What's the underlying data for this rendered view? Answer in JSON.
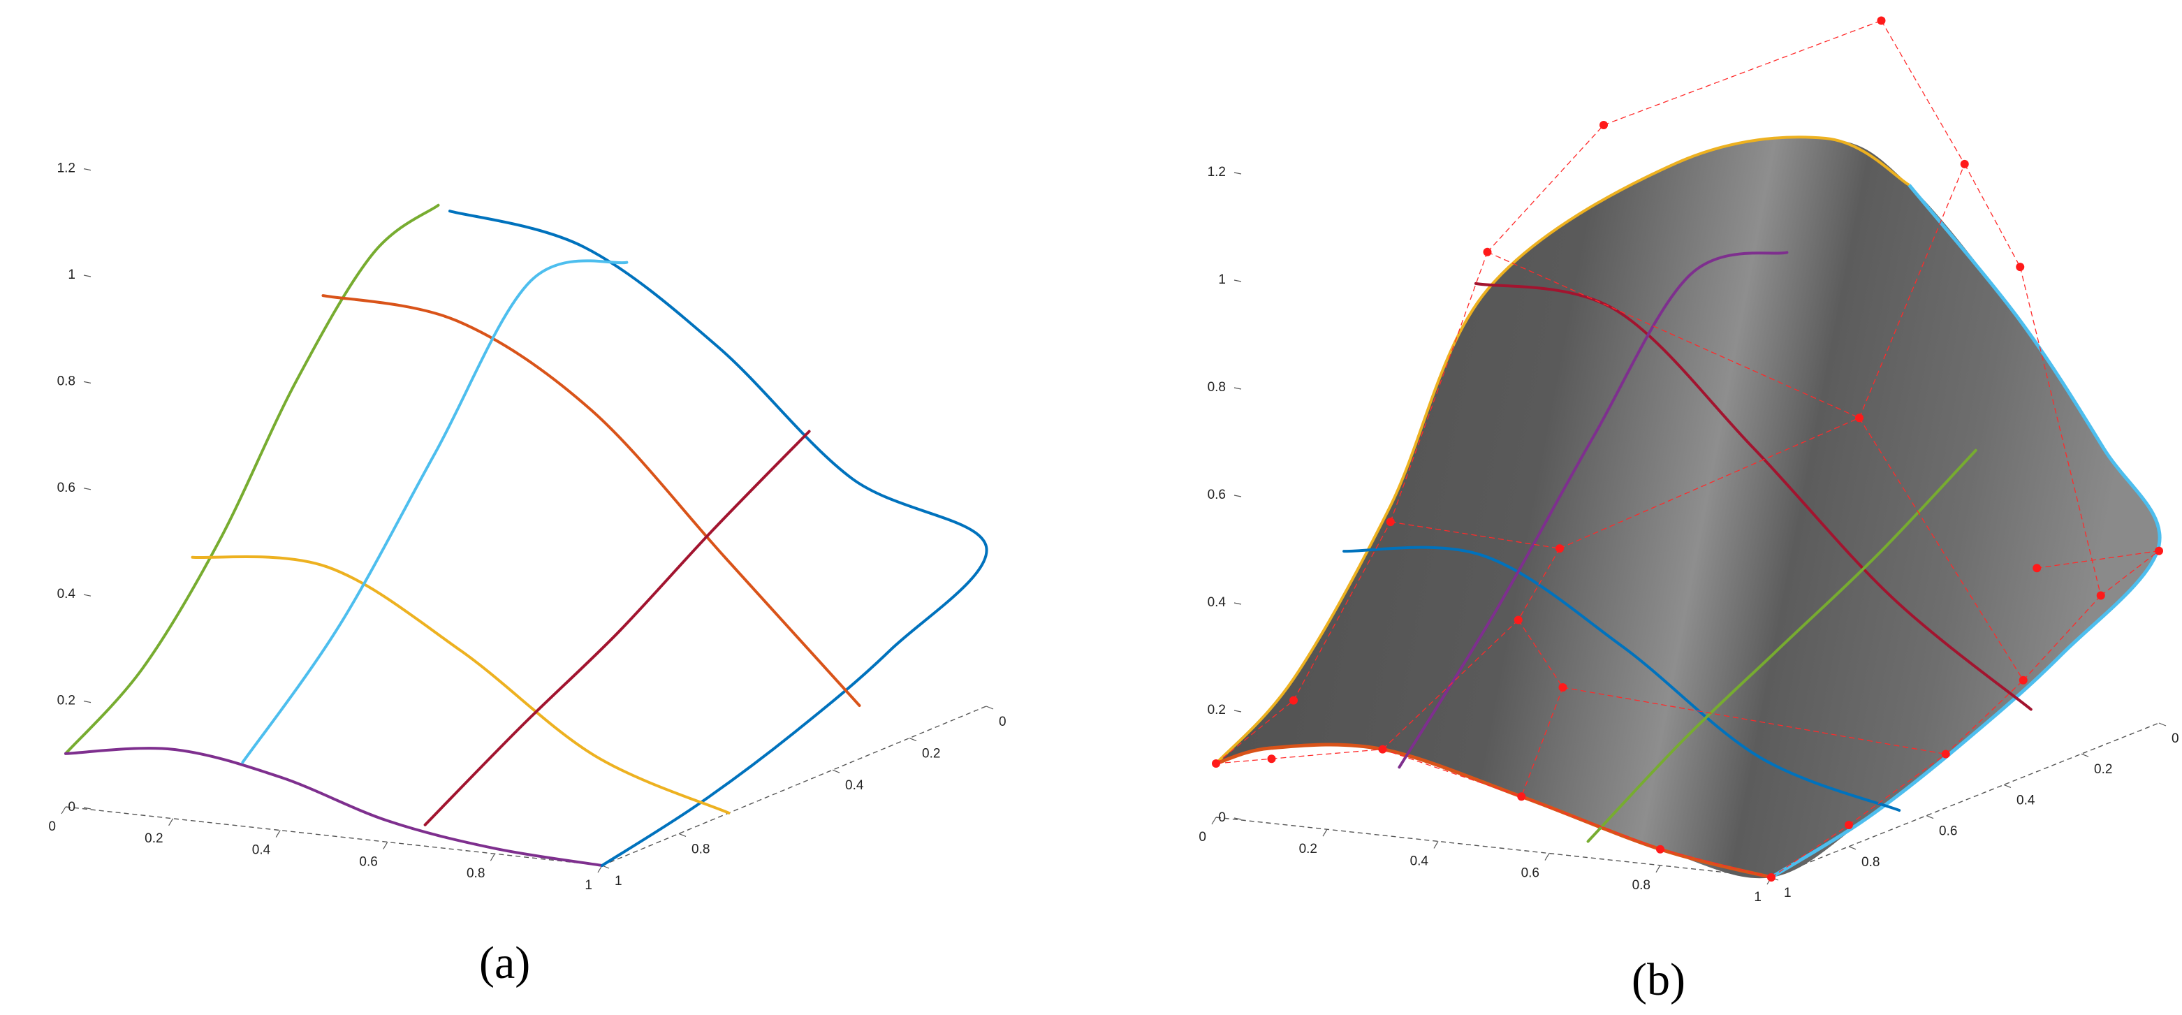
{
  "panel_labels": {
    "a": "(a)",
    "b": "(b)"
  },
  "chart_data": [
    {
      "type": "line",
      "panel": "(a)",
      "title": "",
      "projection": "3d",
      "axes": {
        "x": {
          "ticks": [
            "0",
            "0.2",
            "0.4",
            "0.6",
            "0.8",
            "1"
          ],
          "range": [
            0,
            1
          ]
        },
        "y": {
          "ticks": [
            "0",
            "0.2",
            "0.4",
            "0.8",
            "1"
          ],
          "range": [
            0,
            1
          ]
        },
        "z": {
          "ticks": [
            "0",
            "0.2",
            "0.4",
            "0.6",
            "0.8",
            "1",
            "1.2"
          ],
          "range": [
            0,
            1.2
          ]
        }
      },
      "grid": false,
      "series": [
        {
          "color": "#77AC30",
          "points": [
            [
              0,
              0,
              0.1
            ],
            [
              0,
              0.2,
              0.2
            ],
            [
              0,
              0.4,
              0.38
            ],
            [
              0,
              0.6,
              0.62
            ],
            [
              0,
              0.8,
              0.8
            ],
            [
              0,
              0.97,
              0.84
            ]
          ]
        },
        {
          "color": "#7E2F8E",
          "points": [
            [
              0,
              0,
              0.1
            ],
            [
              0.2,
              0,
              0.13
            ],
            [
              0.4,
              0,
              0.1
            ],
            [
              0.6,
              0,
              0.04
            ],
            [
              0.8,
              0,
              0.01
            ],
            [
              1,
              0,
              0
            ]
          ]
        },
        {
          "color": "#0072BD",
          "points": [
            [
              0,
              1,
              0.82
            ],
            [
              0.25,
              1,
              0.78
            ],
            [
              0.5,
              1,
              0.62
            ],
            [
              0.75,
              1,
              0.4
            ],
            [
              1,
              1,
              0.3
            ],
            [
              1,
              0.75,
              0.18
            ],
            [
              1,
              0.5,
              0.1
            ],
            [
              1,
              0.25,
              0.04
            ],
            [
              1,
              0,
              0
            ]
          ]
        },
        {
          "color": "#D95319",
          "points": [
            [
              0,
              0.67,
              0.76
            ],
            [
              0.25,
              0.67,
              0.74
            ],
            [
              0.5,
              0.67,
              0.6
            ],
            [
              0.75,
              0.67,
              0.35
            ],
            [
              1,
              0.67,
              0.1
            ]
          ]
        },
        {
          "color": "#EDB120",
          "points": [
            [
              0,
              0.33,
              0.37
            ],
            [
              0.25,
              0.33,
              0.38
            ],
            [
              0.5,
              0.33,
              0.25
            ],
            [
              0.75,
              0.33,
              0.08
            ],
            [
              1,
              0.33,
              0.0
            ]
          ]
        },
        {
          "color": "#4DBEEE",
          "points": [
            [
              0.33,
              0,
              0.12
            ],
            [
              0.33,
              0.25,
              0.3
            ],
            [
              0.33,
              0.5,
              0.55
            ],
            [
              0.33,
              0.75,
              0.8
            ],
            [
              0.33,
              1,
              0.76
            ]
          ]
        },
        {
          "color": "#A2142F",
          "points": [
            [
              0.67,
              0,
              0.04
            ],
            [
              0.67,
              0.25,
              0.15
            ],
            [
              0.67,
              0.5,
              0.25
            ],
            [
              0.67,
              0.75,
              0.37
            ],
            [
              0.67,
              1,
              0.48
            ]
          ]
        }
      ]
    },
    {
      "type": "surface",
      "panel": "(b)",
      "title": "",
      "projection": "3d",
      "axes": {
        "x": {
          "ticks": [
            "0",
            "0.2",
            "0.4",
            "0.6",
            "0.8",
            "1"
          ],
          "range": [
            0,
            1
          ]
        },
        "y": {
          "ticks": [
            "0",
            "0.2",
            "0.4",
            "0.6",
            "0.8",
            "1"
          ],
          "range": [
            0,
            1
          ]
        },
        "z": {
          "ticks": [
            "0",
            "0.2",
            "0.4",
            "0.6",
            "0.8",
            "1",
            "1.2"
          ],
          "range": [
            0,
            1.2
          ]
        }
      },
      "grid": false,
      "surface_color": "#5f5f5f",
      "boundary_colors": {
        "left": "#EDB120",
        "front": "#D95319",
        "right": "#4DBEEE"
      },
      "isocurves": [
        {
          "color": "#A2142F",
          "points": [
            [
              0,
              0.67,
              0.8
            ],
            [
              0.25,
              0.67,
              0.78
            ],
            [
              0.5,
              0.67,
              0.55
            ],
            [
              0.75,
              0.67,
              0.3
            ],
            [
              1,
              0.67,
              0.12
            ]
          ]
        },
        {
          "color": "#0072BD",
          "points": [
            [
              0,
              0.33,
              0.4
            ],
            [
              0.25,
              0.33,
              0.42
            ],
            [
              0.5,
              0.33,
              0.28
            ],
            [
              0.75,
              0.33,
              0.1
            ],
            [
              1,
              0.33,
              0.03
            ]
          ]
        },
        {
          "color": "#7E2F8E",
          "points": [
            [
              0.33,
              0,
              0.13
            ],
            [
              0.33,
              0.25,
              0.35
            ],
            [
              0.33,
              0.5,
              0.6
            ],
            [
              0.33,
              0.75,
              0.83
            ],
            [
              0.33,
              1,
              0.8
            ]
          ]
        },
        {
          "color": "#77AC30",
          "points": [
            [
              0.67,
              0,
              0.03
            ],
            [
              0.67,
              0.25,
              0.15
            ],
            [
              0.67,
              0.5,
              0.25
            ],
            [
              0.67,
              0.75,
              0.35
            ],
            [
              0.67,
              1,
              0.47
            ]
          ]
        }
      ],
      "control_points": [
        [
          0,
          0,
          0.1
        ],
        [
          0,
          0.2,
          0.16
        ],
        [
          0,
          0.45,
          0.42
        ],
        [
          0,
          0.7,
          0.85
        ],
        [
          0,
          1,
          1.0
        ],
        [
          0.1,
          0,
          0.12
        ],
        [
          0.3,
          0,
          0.16
        ],
        [
          0.55,
          0,
          0.1
        ],
        [
          0.8,
          0,
          0.03
        ],
        [
          1,
          0,
          0
        ],
        [
          0.2,
          0.6,
          0.35
        ],
        [
          0.3,
          0.35,
          0.3
        ],
        [
          0.45,
          0.25,
          0.22
        ],
        [
          0.6,
          0.8,
          0.58
        ],
        [
          0.5,
          1,
          1.25
        ],
        [
          0.65,
          1,
          1.0
        ],
        [
          0.75,
          1,
          0.82
        ],
        [
          1,
          0.45,
          0.1
        ],
        [
          1,
          0.2,
          0.04
        ],
        [
          1,
          0.65,
          0.18
        ],
        [
          1,
          0.85,
          0.28
        ],
        [
          1,
          1,
          0.32
        ],
        [
          0.85,
          0.9,
          0.3
        ]
      ]
    }
  ]
}
